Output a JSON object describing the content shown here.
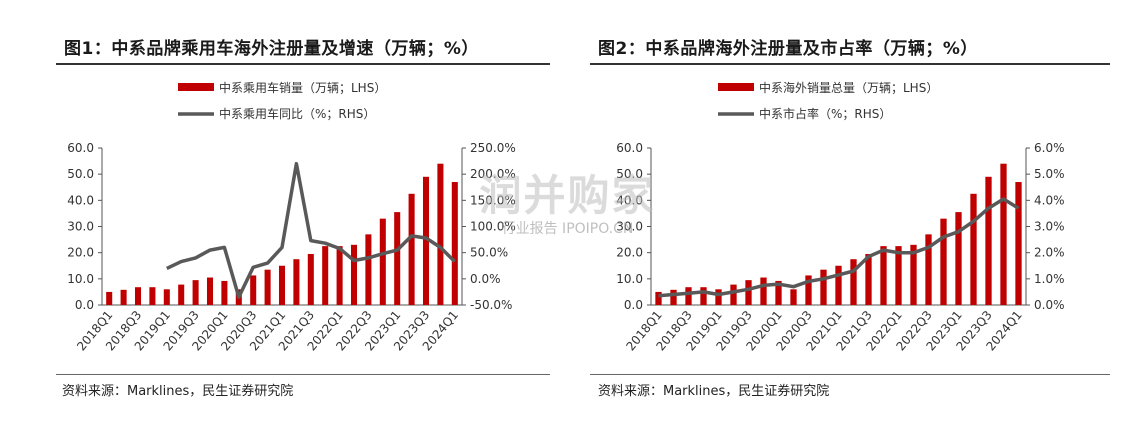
{
  "figures": [
    {
      "title": "图1：中系品牌乘用车海外注册量及增速（万辆；%）",
      "source": "资料来源：Marklines，民生证券研究院"
    },
    {
      "title": "图2：中系品牌海外注册量及市占率（万辆；%）",
      "source": "资料来源：Marklines，民生证券研究院"
    }
  ],
  "watermark": {
    "text": "润并购家",
    "subtext": "行业报告 IPOIPO.CN"
  },
  "chart_data": [
    {
      "type": "bar",
      "categories": [
        "2018Q1",
        "2018Q2",
        "2018Q3",
        "2018Q4",
        "2019Q1",
        "2019Q2",
        "2019Q3",
        "2019Q4",
        "2020Q1",
        "2020Q2",
        "2020Q3",
        "2020Q4",
        "2021Q1",
        "2021Q2",
        "2021Q3",
        "2021Q4",
        "2022Q1",
        "2022Q2",
        "2022Q3",
        "2022Q4",
        "2023Q1",
        "2023Q2",
        "2023Q3",
        "2023Q4",
        "2024Q1"
      ],
      "xtick_labels": [
        "2018Q1",
        "2018Q3",
        "2019Q1",
        "2019Q3",
        "2020Q1",
        "2020Q3",
        "2021Q1",
        "2021Q3",
        "2022Q1",
        "2022Q3",
        "2023Q1",
        "2023Q3",
        "2024Q1"
      ],
      "series": [
        {
          "name": "中系乘用车销量（万辆；LHS）",
          "type": "bar",
          "axis": "left",
          "color": "#c00000",
          "values": [
            5.0,
            5.8,
            6.8,
            6.8,
            6.0,
            7.8,
            9.5,
            10.5,
            9.2,
            6.0,
            11.3,
            13.5,
            15.0,
            17.5,
            19.5,
            22.5,
            22.5,
            23.0,
            27.0,
            33.0,
            35.5,
            42.5,
            49.0,
            54.0,
            47.0
          ]
        },
        {
          "name": "中系乘用车同比（%；RHS）",
          "type": "line",
          "axis": "right",
          "color": "#595959",
          "values": [
            null,
            null,
            null,
            null,
            20.0,
            33.0,
            40.0,
            55.0,
            60.0,
            -35.0,
            22.0,
            30.0,
            60.0,
            220.0,
            73.0,
            68.0,
            58.0,
            35.0,
            40.0,
            48.0,
            55.0,
            82.0,
            78.0,
            60.0,
            33.0
          ]
        }
      ],
      "left_axis": {
        "ylim": [
          0,
          60
        ],
        "ticks": [
          "0.0",
          "10.0",
          "20.0",
          "30.0",
          "40.0",
          "50.0",
          "60.0"
        ]
      },
      "right_axis": {
        "ylim": [
          -50,
          250
        ],
        "ticks": [
          "-50.0%",
          "0.0%",
          "50.0%",
          "100.0%",
          "150.0%",
          "200.0%",
          "250.0%"
        ]
      },
      "legend_position": "top-center",
      "grid": false
    },
    {
      "type": "bar",
      "categories": [
        "2018Q1",
        "2018Q2",
        "2018Q3",
        "2018Q4",
        "2019Q1",
        "2019Q2",
        "2019Q3",
        "2019Q4",
        "2020Q1",
        "2020Q2",
        "2020Q3",
        "2020Q4",
        "2021Q1",
        "2021Q2",
        "2021Q3",
        "2021Q4",
        "2022Q1",
        "2022Q2",
        "2022Q3",
        "2022Q4",
        "2023Q1",
        "2023Q2",
        "2023Q3",
        "2023Q4",
        "2024Q1"
      ],
      "xtick_labels": [
        "2018Q1",
        "2018Q3",
        "2019Q1",
        "2019Q3",
        "2020Q1",
        "2020Q3",
        "2021Q1",
        "2021Q3",
        "2022Q1",
        "2022Q3",
        "2023Q1",
        "2023Q3",
        "2024Q1"
      ],
      "series": [
        {
          "name": "中系海外销量总量（万辆；LHS）",
          "type": "bar",
          "axis": "left",
          "color": "#c00000",
          "values": [
            5.0,
            5.8,
            6.8,
            6.8,
            6.0,
            7.8,
            9.5,
            10.5,
            9.2,
            6.0,
            11.3,
            13.5,
            15.0,
            17.5,
            19.5,
            22.5,
            22.5,
            23.0,
            27.0,
            33.0,
            35.5,
            42.5,
            49.0,
            54.0,
            47.0
          ]
        },
        {
          "name": "中系市占率（%；RHS）",
          "type": "line",
          "axis": "right",
          "color": "#595959",
          "values": [
            0.35,
            0.4,
            0.45,
            0.5,
            0.4,
            0.5,
            0.6,
            0.75,
            0.8,
            0.7,
            0.9,
            1.0,
            1.15,
            1.3,
            1.85,
            2.1,
            2.0,
            2.0,
            2.2,
            2.6,
            2.8,
            3.2,
            3.7,
            4.05,
            3.7
          ]
        }
      ],
      "left_axis": {
        "ylim": [
          0,
          60
        ],
        "ticks": [
          "0.0",
          "10.0",
          "20.0",
          "30.0",
          "40.0",
          "50.0",
          "60.0"
        ]
      },
      "right_axis": {
        "ylim": [
          0,
          6
        ],
        "ticks": [
          "0.0%",
          "1.0%",
          "2.0%",
          "3.0%",
          "4.0%",
          "5.0%",
          "6.0%"
        ]
      },
      "legend_position": "top-center",
      "grid": false
    }
  ]
}
